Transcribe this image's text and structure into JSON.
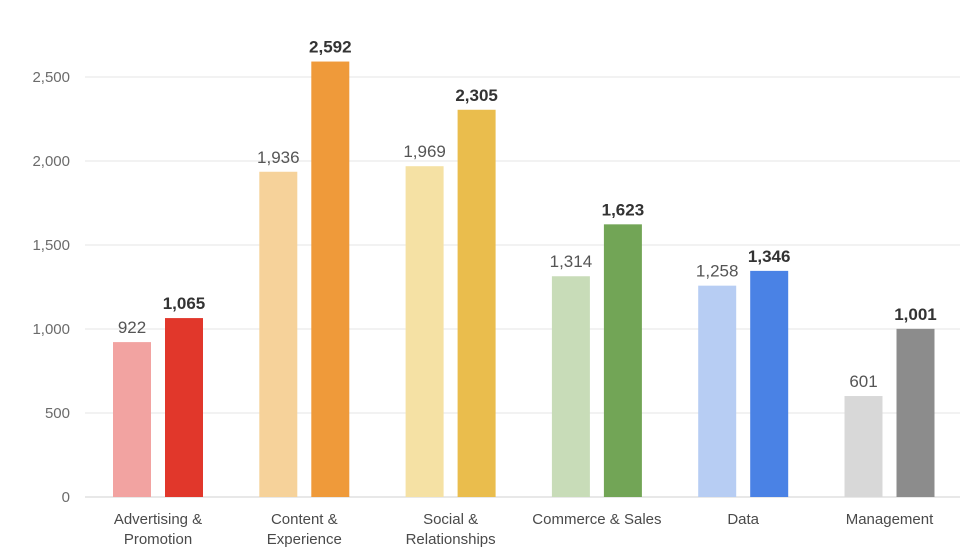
{
  "chart_data": {
    "type": "bar",
    "title": "",
    "xlabel": "",
    "ylabel": "",
    "ylim": [
      0,
      2500
    ],
    "yticks": [
      "0",
      "500",
      "1,000",
      "1,500",
      "2,000",
      "2,500"
    ],
    "grid": true,
    "categories": [
      [
        "Advertising &",
        "Promotion"
      ],
      [
        "Content &",
        "Experience"
      ],
      [
        "Social &",
        "Relationships"
      ],
      [
        "Commerce & Sales"
      ],
      [
        "Data"
      ],
      [
        "Management"
      ]
    ],
    "series": [
      {
        "values": [
          922,
          1936,
          1969,
          1314,
          1258,
          601
        ],
        "labels": [
          "922",
          "1,936",
          "1,969",
          "1,314",
          "1,258",
          "601"
        ],
        "colors": [
          "#f2a3a1",
          "#f6d29a",
          "#f5e1a4",
          "#c8dcb8",
          "#b7cdf3",
          "#d8d8d8"
        ]
      },
      {
        "values": [
          1065,
          2592,
          2305,
          1623,
          1346,
          1001
        ],
        "labels": [
          "1,065",
          "2,592",
          "2,305",
          "1,623",
          "1,346",
          "1,001"
        ],
        "colors": [
          "#e1372b",
          "#ef9a3a",
          "#eabd4d",
          "#72a556",
          "#4a82e5",
          "#8c8c8c"
        ]
      }
    ]
  }
}
